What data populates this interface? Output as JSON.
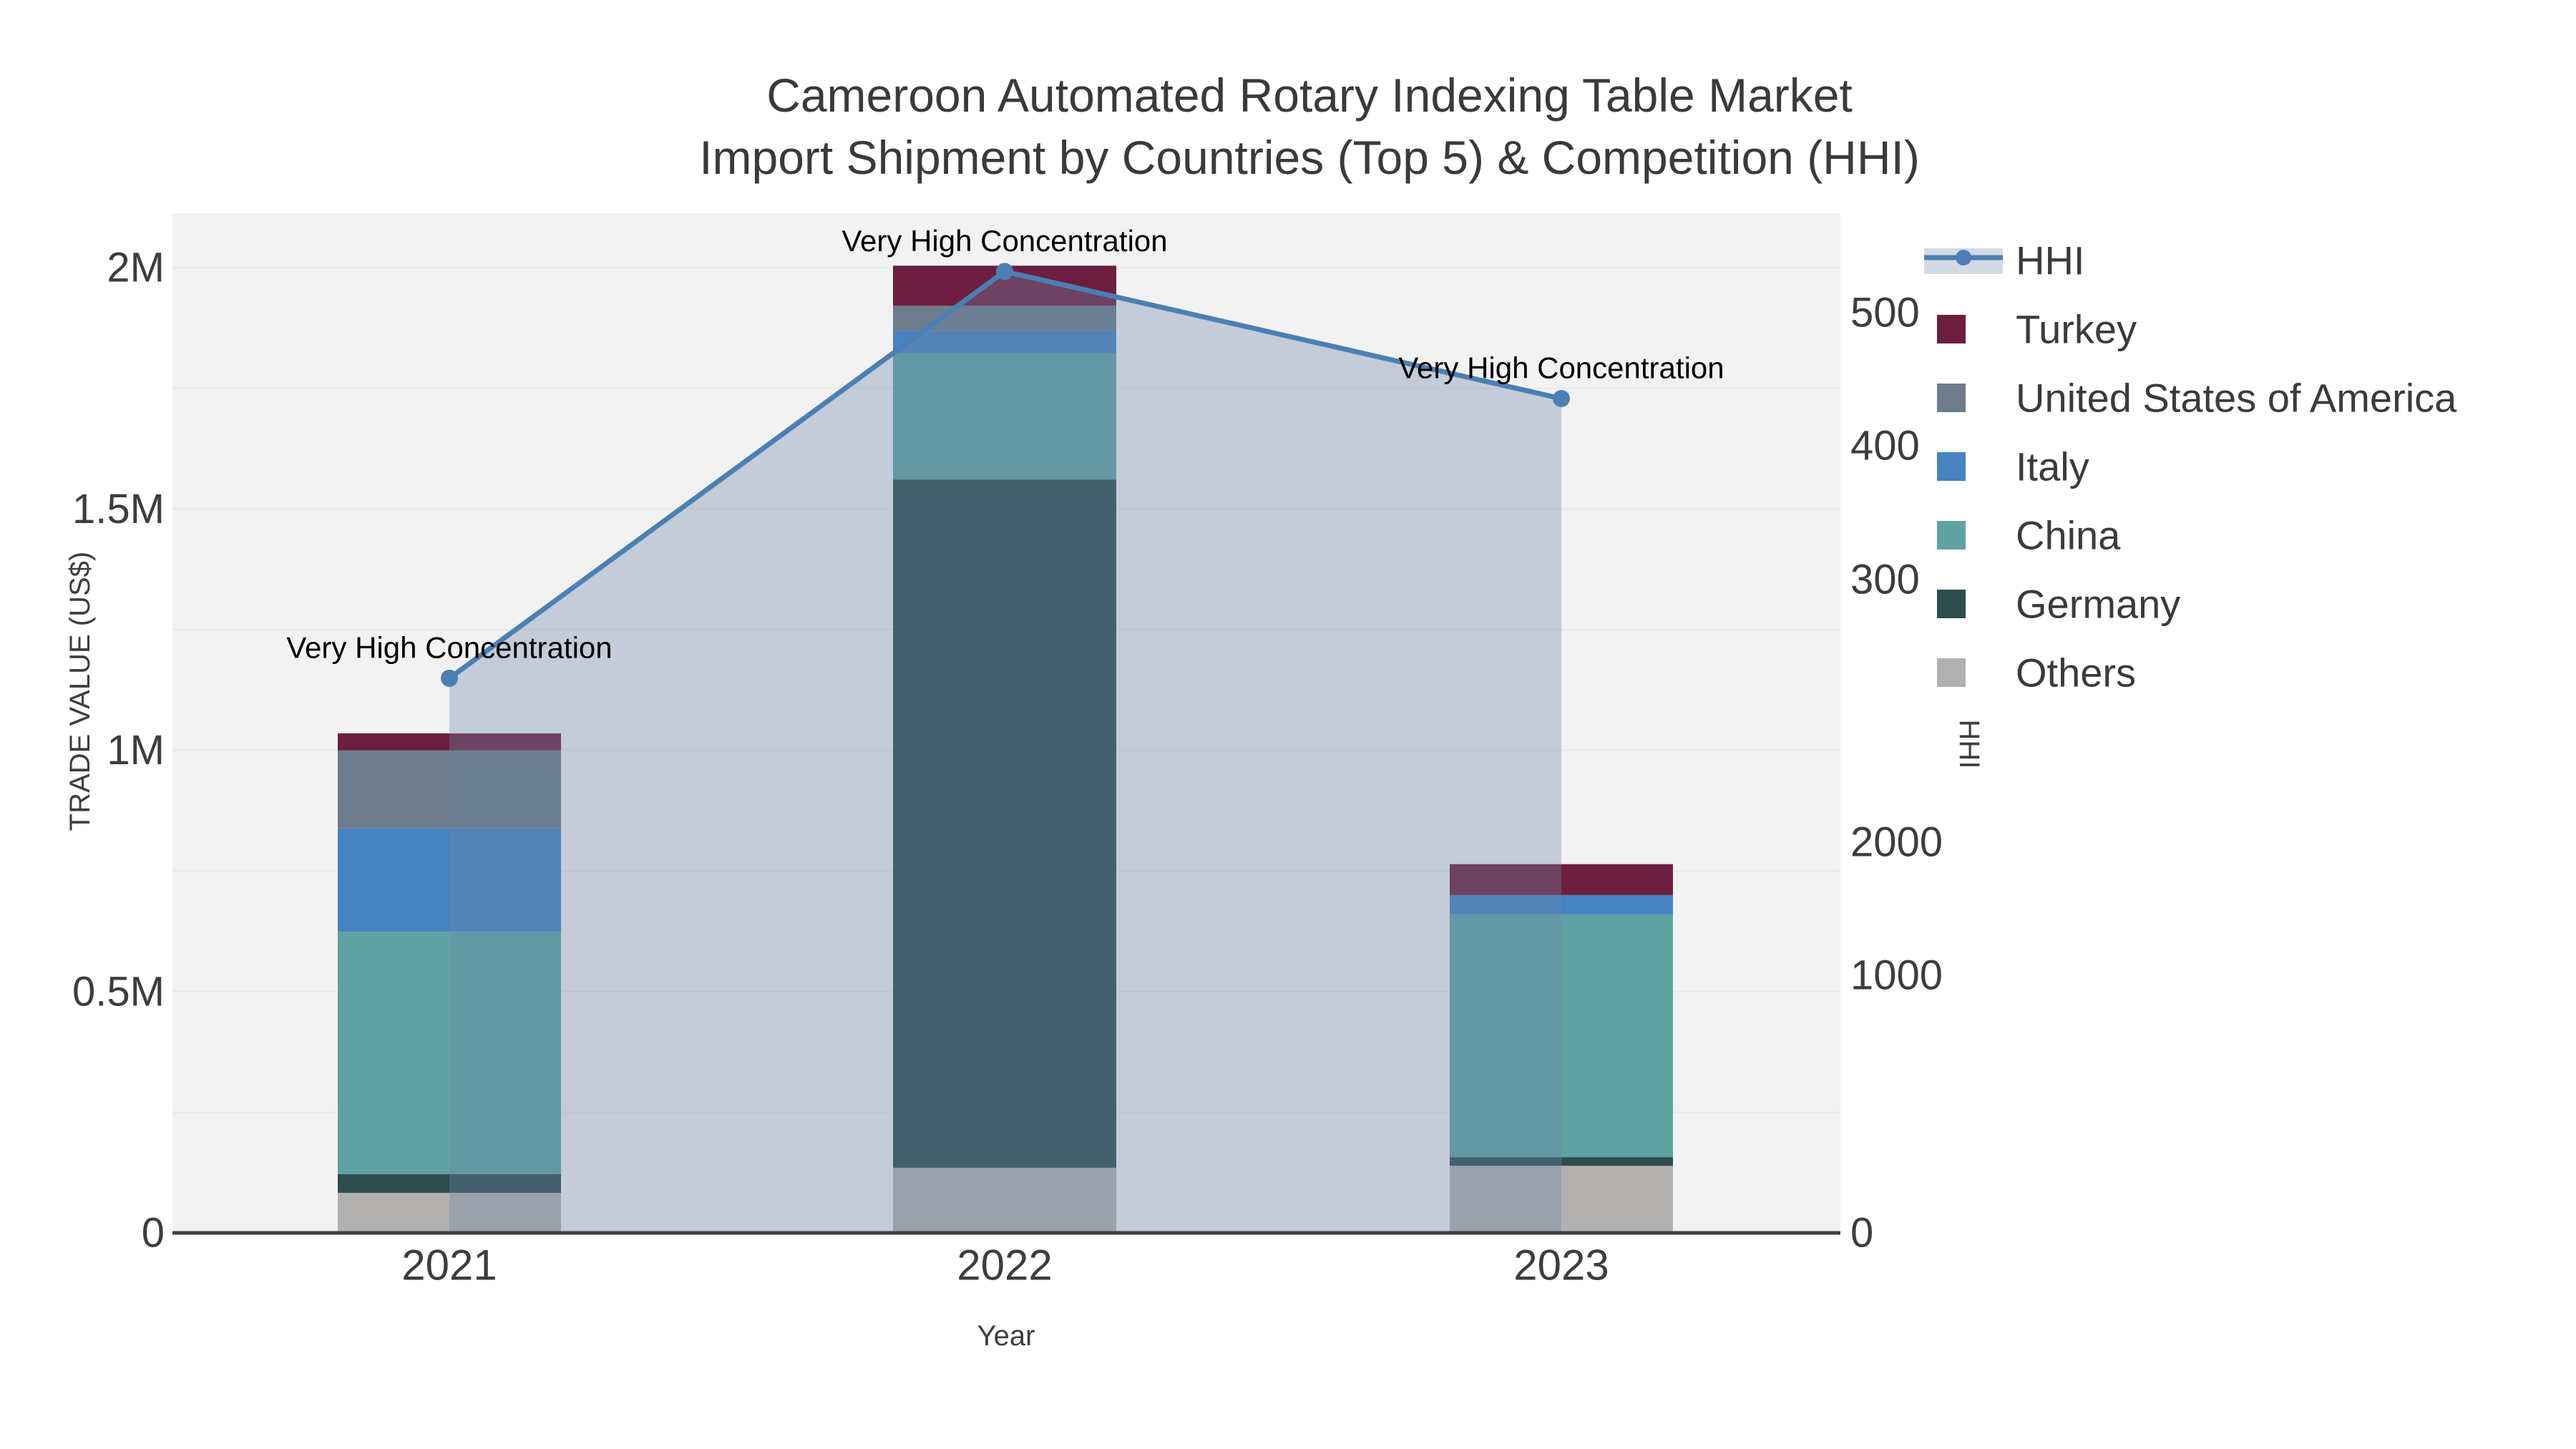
{
  "title": {
    "line1": "Cameroon Automated Rotary Indexing Table Market",
    "line2": "Import Shipment by Countries (Top 5) & Competition (HHI)"
  },
  "chart_data": {
    "type": "combo_stacked_bar_line",
    "categories": [
      "2021",
      "2022",
      "2023"
    ],
    "x_axis": {
      "title": "Year"
    },
    "y_left": {
      "title": "TRADE VALUE (US$)",
      "tick_labels": [
        "0",
        "0.5M",
        "1M",
        "1.5M",
        "2M"
      ],
      "tick_values": [
        0,
        500000,
        1000000,
        1500000,
        2000000
      ]
    },
    "y_right": {
      "title": "HHI",
      "upper_tick_labels": [
        "500",
        "400",
        "300"
      ],
      "lower_tick_labels": [
        "2000",
        "1000",
        "0"
      ]
    },
    "series": [
      {
        "name": "Others",
        "color": "#b2b0af",
        "values": [
          83000,
          135000,
          139000
        ]
      },
      {
        "name": "Germany",
        "color": "#2d4d4e",
        "values": [
          39000,
          1426000,
          18000
        ]
      },
      {
        "name": "China",
        "color": "#5fa2a4",
        "values": [
          502000,
          262000,
          503000
        ]
      },
      {
        "name": "Italy",
        "color": "#4583c1",
        "values": [
          214000,
          46000,
          40000
        ]
      },
      {
        "name": "United States of America",
        "color": "#6e7c8c",
        "values": [
          162000,
          52000,
          0
        ]
      },
      {
        "name": "Turkey",
        "color": "#6d1e3e",
        "values": [
          35000,
          83000,
          64000
        ]
      }
    ],
    "bar_totals": [
      1035000,
      2004000,
      764000
    ],
    "hhi": {
      "name": "HHI",
      "line_color": "#4a80b5",
      "area_color": "#6c86a5",
      "values": [
        3220,
        6260,
        5310
      ]
    },
    "annotations": [
      {
        "x": "2021",
        "text": "Very High Concentration"
      },
      {
        "x": "2022",
        "text": "Very High Concentration"
      },
      {
        "x": "2023",
        "text": "Very High Concentration"
      }
    ],
    "legend": {
      "entries": [
        "HHI",
        "Turkey",
        "United States of America",
        "Italy",
        "China",
        "Germany",
        "Others"
      ],
      "position": "right"
    },
    "grid": true
  },
  "colors": {
    "plot_background": "#f2f2f3",
    "gridline": "#eaeaec",
    "axis_spine": "#3e3e42",
    "tick_text": "#3d3d3d",
    "title_text": "#3a3a3a",
    "annotation_text": "#000000"
  }
}
